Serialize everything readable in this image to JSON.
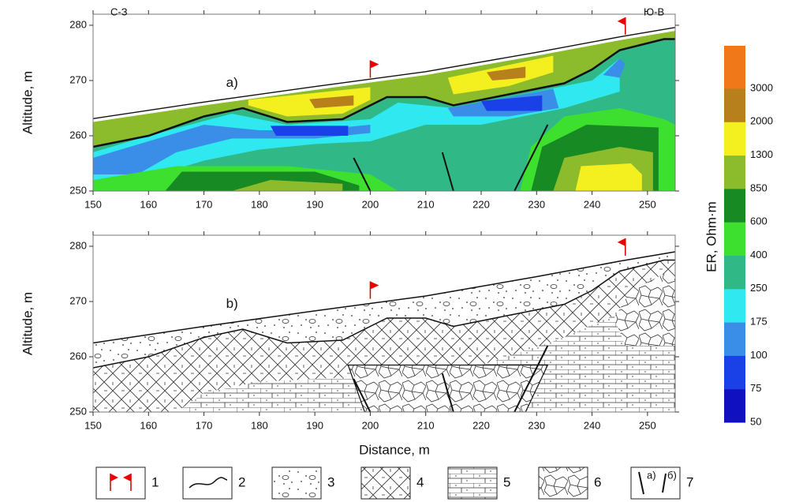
{
  "chart_data": [
    {
      "type": "contour",
      "label": "a)",
      "left_label": "С-З",
      "right_label": "Ю-В",
      "ylabel": "Altitude, m",
      "xlim": [
        150,
        255
      ],
      "xticks": [
        150,
        160,
        170,
        180,
        190,
        200,
        210,
        220,
        230,
        240,
        250
      ],
      "ylim": [
        250,
        282
      ],
      "yticks": [
        250,
        260,
        270,
        280
      ]
    },
    {
      "type": "section",
      "label": "b)",
      "ylabel": "Altitude, m",
      "xlabel": "Distance, m",
      "xlim": [
        150,
        255
      ],
      "xticks": [
        150,
        160,
        170,
        180,
        190,
        200,
        210,
        220,
        230,
        240,
        250
      ],
      "ylim": [
        250,
        282
      ],
      "yticks": [
        250,
        260,
        270,
        280
      ]
    }
  ],
  "colorbar": {
    "label": "ER, Ohm·m",
    "ticks": [
      50,
      75,
      100,
      175,
      250,
      400,
      600,
      850,
      1300,
      2000,
      3000
    ],
    "colors": [
      "#1010c0",
      "#1a40e8",
      "#3a8ee8",
      "#30e8f0",
      "#30b886",
      "#3ee030",
      "#188a24",
      "#8cbc2c",
      "#f4f020",
      "#b8801c",
      "#f07818"
    ]
  },
  "legend": [
    {
      "label": "1"
    },
    {
      "label": "2"
    },
    {
      "label": "3"
    },
    {
      "label": "4"
    },
    {
      "label": "5"
    },
    {
      "label": "6"
    },
    {
      "label": "7",
      "sub": [
        "а)",
        "б)"
      ]
    }
  ]
}
